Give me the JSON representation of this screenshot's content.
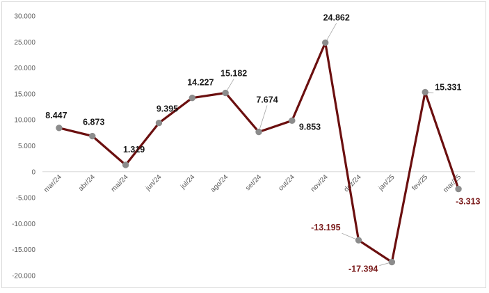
{
  "chart_data": {
    "type": "line",
    "categories": [
      "mar/24",
      "abr/24",
      "mai/24",
      "jun/24",
      "jul/24",
      "ago/24",
      "set/24",
      "out/24",
      "nov/24",
      "dez/24",
      "jan/25",
      "fev/25",
      "mar/25"
    ],
    "values": [
      8447,
      6873,
      1319,
      9395,
      14227,
      15182,
      7674,
      9853,
      24862,
      -13195,
      -17394,
      15331,
      -3313
    ],
    "data_labels": [
      "8.447",
      "6.873",
      "1.319",
      "9.395",
      "14.227",
      "15.182",
      "7.674",
      "9.853",
      "24.862",
      "-13.195",
      "-17.394",
      "15.331",
      "-3.313"
    ],
    "y_tick_labels": [
      "30.000",
      "25.000",
      "20.000",
      "15.000",
      "10.000",
      "5.000",
      "0",
      "-5.000",
      "-10.000",
      "-15.000",
      "-20.000"
    ],
    "y_ticks": [
      30000,
      25000,
      20000,
      15000,
      10000,
      5000,
      0,
      -5000,
      -10000,
      -15000,
      -20000
    ],
    "ylim": [
      -20000,
      30000
    ],
    "title": "",
    "xlabel": "",
    "ylabel": "",
    "grid": false,
    "legend": "none",
    "colors": {
      "line": "#6b0f0f",
      "marker": "#8c8c8c",
      "positive_label": "#1a1a1a",
      "negative_label": "#7b1c1c",
      "axis_text": "#595959",
      "zero_line": "#d9d9d9",
      "leader_line": "#a6a6a6"
    }
  }
}
